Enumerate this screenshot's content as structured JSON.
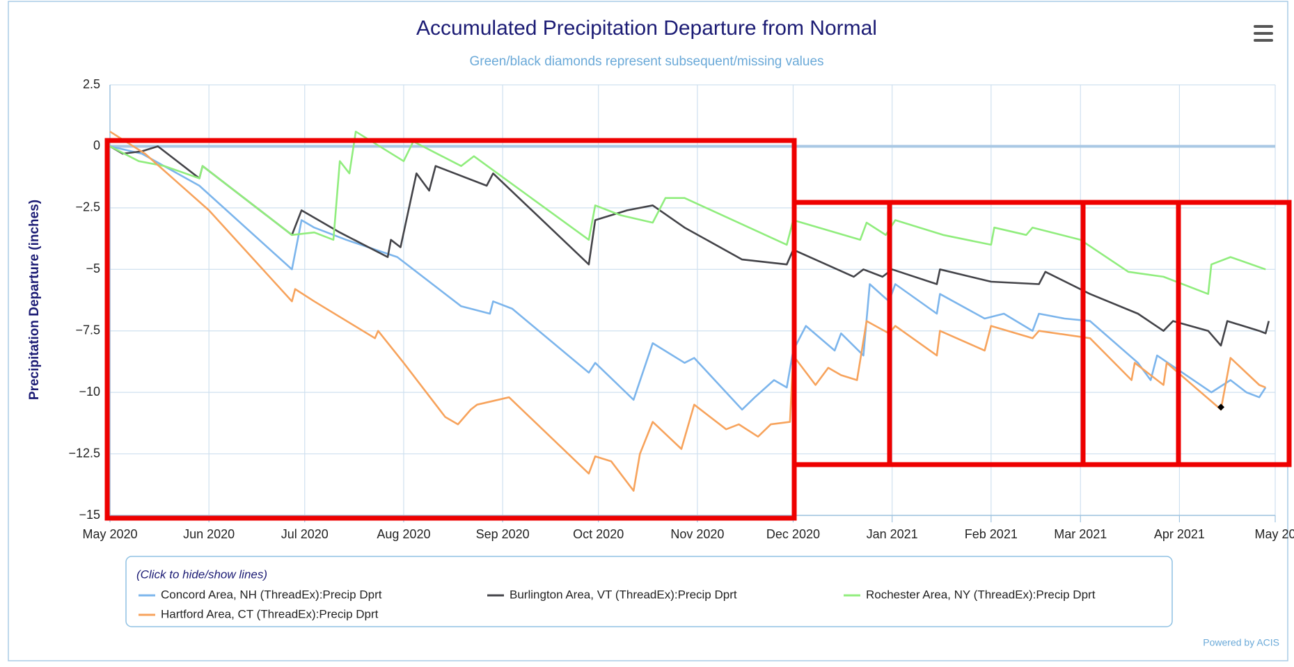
{
  "chart_data": {
    "type": "line",
    "title": "Accumulated Precipitation Departure from Normal",
    "subtitle": "Green/black diamonds represent subsequent/missing values",
    "y_label": "Precipitation Departure (inches)",
    "legend_title": "(Click to hide/show lines)",
    "credit": "Powered by ACIS",
    "grid": true,
    "xlim": [
      0,
      365
    ],
    "xticks": [
      {
        "value": 0,
        "label": "May 2020"
      },
      {
        "value": 31,
        "label": "Jun 2020"
      },
      {
        "value": 61,
        "label": "Jul 2020"
      },
      {
        "value": 92,
        "label": "Aug 2020"
      },
      {
        "value": 123,
        "label": "Sep 2020"
      },
      {
        "value": 153,
        "label": "Oct 2020"
      },
      {
        "value": 184,
        "label": "Nov 2020"
      },
      {
        "value": 214,
        "label": "Dec 2020"
      },
      {
        "value": 245,
        "label": "Jan 2021"
      },
      {
        "value": 276,
        "label": "Feb 2021"
      },
      {
        "value": 304,
        "label": "Mar 2021"
      },
      {
        "value": 335,
        "label": "Apr 2021"
      },
      {
        "value": 365,
        "label": "May 20"
      }
    ],
    "ylim": [
      -15,
      2.5
    ],
    "yticks": [
      2.5,
      0,
      {
        "value": -2.5,
        "label": "−2.5"
      },
      {
        "value": -5,
        "label": "−5"
      },
      {
        "value": -7.5,
        "label": "−7.5"
      },
      {
        "value": -10,
        "label": "−10"
      },
      {
        "value": -12.5,
        "label": "−12.5"
      },
      {
        "value": -15,
        "label": "−15"
      }
    ],
    "reference_line": 0,
    "series": [
      {
        "name": "Concord Area, NH (ThreadEx):Precip Dprt",
        "color": "#7cb5ec",
        "x": [
          0,
          10,
          28,
          57,
          60,
          64,
          74,
          90,
          110,
          119,
          120,
          126,
          150,
          152,
          164,
          170,
          180,
          183,
          198,
          202,
          208,
          212,
          214,
          218,
          227,
          229,
          236,
          238,
          244,
          246,
          259,
          260,
          274,
          280,
          289,
          291,
          299,
          307,
          322,
          326,
          328,
          345,
          351,
          356,
          360,
          362
        ],
        "values": [
          0,
          -0.3,
          -1.6,
          -5.0,
          -3.0,
          -3.3,
          -3.8,
          -4.5,
          -6.5,
          -6.8,
          -6.3,
          -6.6,
          -9.2,
          -8.8,
          -10.3,
          -8.0,
          -8.8,
          -8.6,
          -10.7,
          -10.2,
          -9.5,
          -9.8,
          -8.3,
          -7.3,
          -8.3,
          -7.6,
          -8.5,
          -5.6,
          -6.3,
          -5.6,
          -6.8,
          -6.0,
          -7.0,
          -6.8,
          -7.5,
          -6.8,
          -7.0,
          -7.1,
          -8.8,
          -9.5,
          -8.5,
          -10.0,
          -9.5,
          -10.0,
          -10.2,
          -9.8
        ]
      },
      {
        "name": "Burlington Area, VT (ThreadEx):Precip Dprt",
        "color": "#434348",
        "x": [
          0,
          4,
          10,
          15,
          28,
          29,
          57,
          60,
          72,
          87,
          88,
          91,
          96,
          100,
          102,
          118,
          120,
          150,
          152,
          162,
          170,
          180,
          198,
          212,
          214,
          233,
          236,
          242,
          245,
          259,
          260,
          276,
          291,
          293,
          307,
          322,
          330,
          333,
          344,
          348,
          350,
          360,
          362,
          363
        ],
        "values": [
          0,
          -0.3,
          -0.2,
          0,
          -1.3,
          -0.8,
          -3.6,
          -2.6,
          -3.5,
          -4.5,
          -3.8,
          -4.1,
          -1.1,
          -1.8,
          -0.8,
          -1.6,
          -1.1,
          -4.8,
          -3.0,
          -2.6,
          -2.4,
          -3.3,
          -4.6,
          -4.8,
          -4.2,
          -5.3,
          -5.0,
          -5.3,
          -5.0,
          -5.6,
          -5.0,
          -5.5,
          -5.6,
          -5.1,
          -6.0,
          -6.8,
          -7.5,
          -7.1,
          -7.5,
          -8.1,
          -7.1,
          -7.5,
          -7.6,
          -7.1
        ]
      },
      {
        "name": "Rochester Area, NY (ThreadEx):Precip Dprt",
        "color": "#90ed7d",
        "x": [
          0,
          9,
          17,
          28,
          29,
          57,
          64,
          70,
          72,
          75,
          77,
          92,
          95,
          110,
          114,
          150,
          152,
          160,
          170,
          174,
          180,
          212,
          214,
          235,
          237,
          243,
          246,
          261,
          276,
          277,
          287,
          289,
          304,
          319,
          330,
          344,
          345,
          351,
          362
        ],
        "values": [
          0,
          -0.6,
          -0.8,
          -1.3,
          -0.8,
          -3.6,
          -3.5,
          -3.8,
          -0.6,
          -1.1,
          0.6,
          -0.6,
          0.2,
          -0.8,
          -0.4,
          -3.8,
          -2.4,
          -2.8,
          -3.1,
          -2.1,
          -2.1,
          -4.0,
          -3.0,
          -3.8,
          -3.1,
          -3.6,
          -3.0,
          -3.6,
          -4.0,
          -3.3,
          -3.6,
          -3.3,
          -3.8,
          -5.1,
          -5.3,
          -6.0,
          -4.8,
          -4.5,
          -5.0
        ]
      },
      {
        "name": "Hartford Area, CT (ThreadEx):Precip Dprt",
        "color": "#f7a35c",
        "x": [
          0,
          11,
          31,
          57,
          58,
          64,
          83,
          84,
          92,
          105,
          109,
          113,
          115,
          125,
          150,
          152,
          157,
          164,
          166,
          170,
          179,
          183,
          193,
          197,
          203,
          207,
          213,
          214,
          221,
          225,
          229,
          234,
          237,
          244,
          246,
          259,
          260,
          274,
          276,
          289,
          291,
          307,
          320,
          321,
          330,
          331,
          348,
          351,
          360,
          362
        ],
        "values": [
          0.6,
          -0.3,
          -2.6,
          -6.3,
          -5.8,
          -6.3,
          -7.8,
          -7.5,
          -8.8,
          -11.0,
          -11.3,
          -10.7,
          -10.5,
          -10.2,
          -13.3,
          -12.6,
          -12.8,
          -14.0,
          -12.5,
          -11.2,
          -12.3,
          -10.5,
          -11.5,
          -11.3,
          -11.8,
          -11.3,
          -11.2,
          -8.5,
          -9.7,
          -9.0,
          -9.3,
          -9.5,
          -7.1,
          -7.6,
          -7.3,
          -8.5,
          -7.5,
          -8.3,
          -7.3,
          -7.8,
          -7.5,
          -7.8,
          -9.5,
          -8.8,
          -9.7,
          -8.8,
          -10.7,
          -8.6,
          -9.7,
          -9.8
        ]
      }
    ],
    "markers": [
      {
        "x": 348,
        "y": -10.6,
        "color": "#000000"
      }
    ]
  }
}
